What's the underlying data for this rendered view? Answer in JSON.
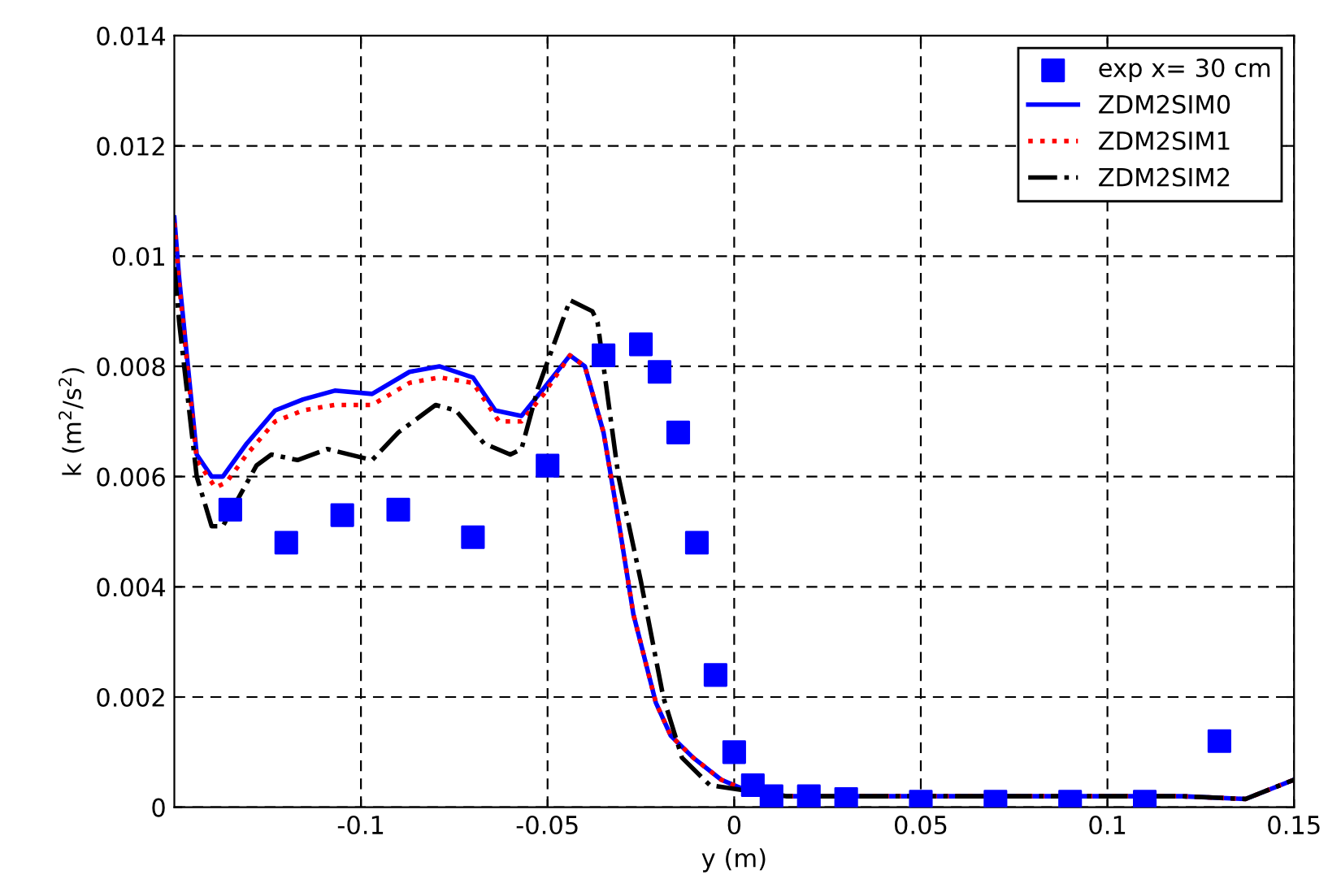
{
  "chart_data": {
    "type": "line",
    "xlabel": "y (m)",
    "ylabel": "k (m$^{2}$/s$^{2}$)",
    "xlim": [
      -0.15,
      0.15
    ],
    "ylim": [
      0,
      0.014
    ],
    "xticks": [
      -0.1,
      -0.05,
      0,
      0.05,
      0.1,
      0.15
    ],
    "yticks": [
      0,
      0.002,
      0.004,
      0.006,
      0.008,
      0.01,
      0.012,
      0.014
    ],
    "grid": true,
    "legend": "top right",
    "series": [
      {
        "name": "exp x= 30 cm",
        "type": "scatter",
        "marker": "square",
        "color": "#0000ff",
        "x": [
          -0.135,
          -0.12,
          -0.105,
          -0.09,
          -0.07,
          -0.05,
          -0.035,
          -0.025,
          -0.02,
          -0.015,
          -0.01,
          -0.005,
          0,
          0.005,
          0.01,
          0.02,
          0.03,
          0.05,
          0.07,
          0.09,
          0.11,
          0.13
        ],
        "values": [
          0.0054,
          0.0048,
          0.0053,
          0.0054,
          0.0049,
          0.0062,
          0.0082,
          0.0084,
          0.0079,
          0.0068,
          0.0048,
          0.0024,
          0.001,
          0.0004,
          0.0002,
          0.0002,
          0.00015,
          0.0001,
          0.0001,
          0.0001,
          0.0001,
          0.0012
        ]
      },
      {
        "name": "ZDM2SIM0",
        "line_style": "solid",
        "color": "#0000ff",
        "x": [
          -0.15,
          -0.1487,
          -0.144,
          -0.14,
          -0.137,
          -0.1306,
          -0.123,
          -0.1155,
          -0.107,
          -0.097,
          -0.087,
          -0.079,
          -0.07,
          -0.064,
          -0.057,
          -0.051,
          -0.044,
          -0.04,
          -0.035,
          -0.031,
          -0.027,
          -0.021,
          -0.017,
          -0.011,
          -0.0035,
          0.0035,
          0.014,
          0.05,
          0.1,
          0.12,
          0.137,
          0.15
        ],
        "values": [
          0.0107,
          0.0096,
          0.0064,
          0.006,
          0.006,
          0.0066,
          0.0072,
          0.0074,
          0.00756,
          0.0075,
          0.0079,
          0.008,
          0.0078,
          0.0072,
          0.0071,
          0.0076,
          0.0082,
          0.008,
          0.0068,
          0.0052,
          0.0035,
          0.0019,
          0.0013,
          0.0009,
          0.0005,
          0.0003,
          0.0002,
          0.0002,
          0.0002,
          0.0002,
          0.00015,
          0.0005
        ]
      },
      {
        "name": "ZDM2SIM1",
        "line_style": "dotted",
        "color": "#ff0000",
        "x": [
          -0.15,
          -0.1487,
          -0.144,
          -0.139,
          -0.136,
          -0.1306,
          -0.123,
          -0.1155,
          -0.107,
          -0.097,
          -0.087,
          -0.079,
          -0.07,
          -0.063,
          -0.057,
          -0.051,
          -0.044,
          -0.04,
          -0.035,
          -0.031,
          -0.027,
          -0.021,
          -0.017,
          -0.011,
          -0.0035,
          0.0035,
          0.014,
          0.05,
          0.1,
          0.12,
          0.137,
          0.15
        ],
        "values": [
          0.0106,
          0.0095,
          0.0063,
          0.0058,
          0.0059,
          0.0064,
          0.007,
          0.0072,
          0.0073,
          0.0073,
          0.0077,
          0.0078,
          0.0077,
          0.007,
          0.007,
          0.0075,
          0.0082,
          0.008,
          0.0068,
          0.0052,
          0.0035,
          0.0019,
          0.0013,
          0.0009,
          0.0005,
          0.0003,
          0.0002,
          0.0002,
          0.0002,
          0.0002,
          0.00015,
          0.0005
        ]
      },
      {
        "name": "ZDM2SIM2",
        "line_style": "dashdot",
        "color": "#000000",
        "x": [
          -0.15,
          -0.1487,
          -0.144,
          -0.14,
          -0.137,
          -0.128,
          -0.124,
          -0.117,
          -0.109,
          -0.097,
          -0.09,
          -0.08,
          -0.0746,
          -0.067,
          -0.06,
          -0.057,
          -0.0526,
          -0.044,
          -0.038,
          -0.0366,
          -0.031,
          -0.025,
          -0.019,
          -0.014,
          -0.0065,
          0.0035,
          0.014,
          0.05,
          0.1,
          0.12,
          0.137,
          0.15
        ],
        "values": [
          0.0098,
          0.0088,
          0.006,
          0.0051,
          0.0051,
          0.0062,
          0.0064,
          0.0063,
          0.0065,
          0.0063,
          0.0068,
          0.0073,
          0.0072,
          0.0066,
          0.0064,
          0.0065,
          0.0076,
          0.0092,
          0.009,
          0.0088,
          0.006,
          0.0041,
          0.002,
          0.0009,
          0.0004,
          0.0003,
          0.0002,
          0.0002,
          0.0002,
          0.0002,
          0.00015,
          0.0005
        ]
      }
    ]
  }
}
